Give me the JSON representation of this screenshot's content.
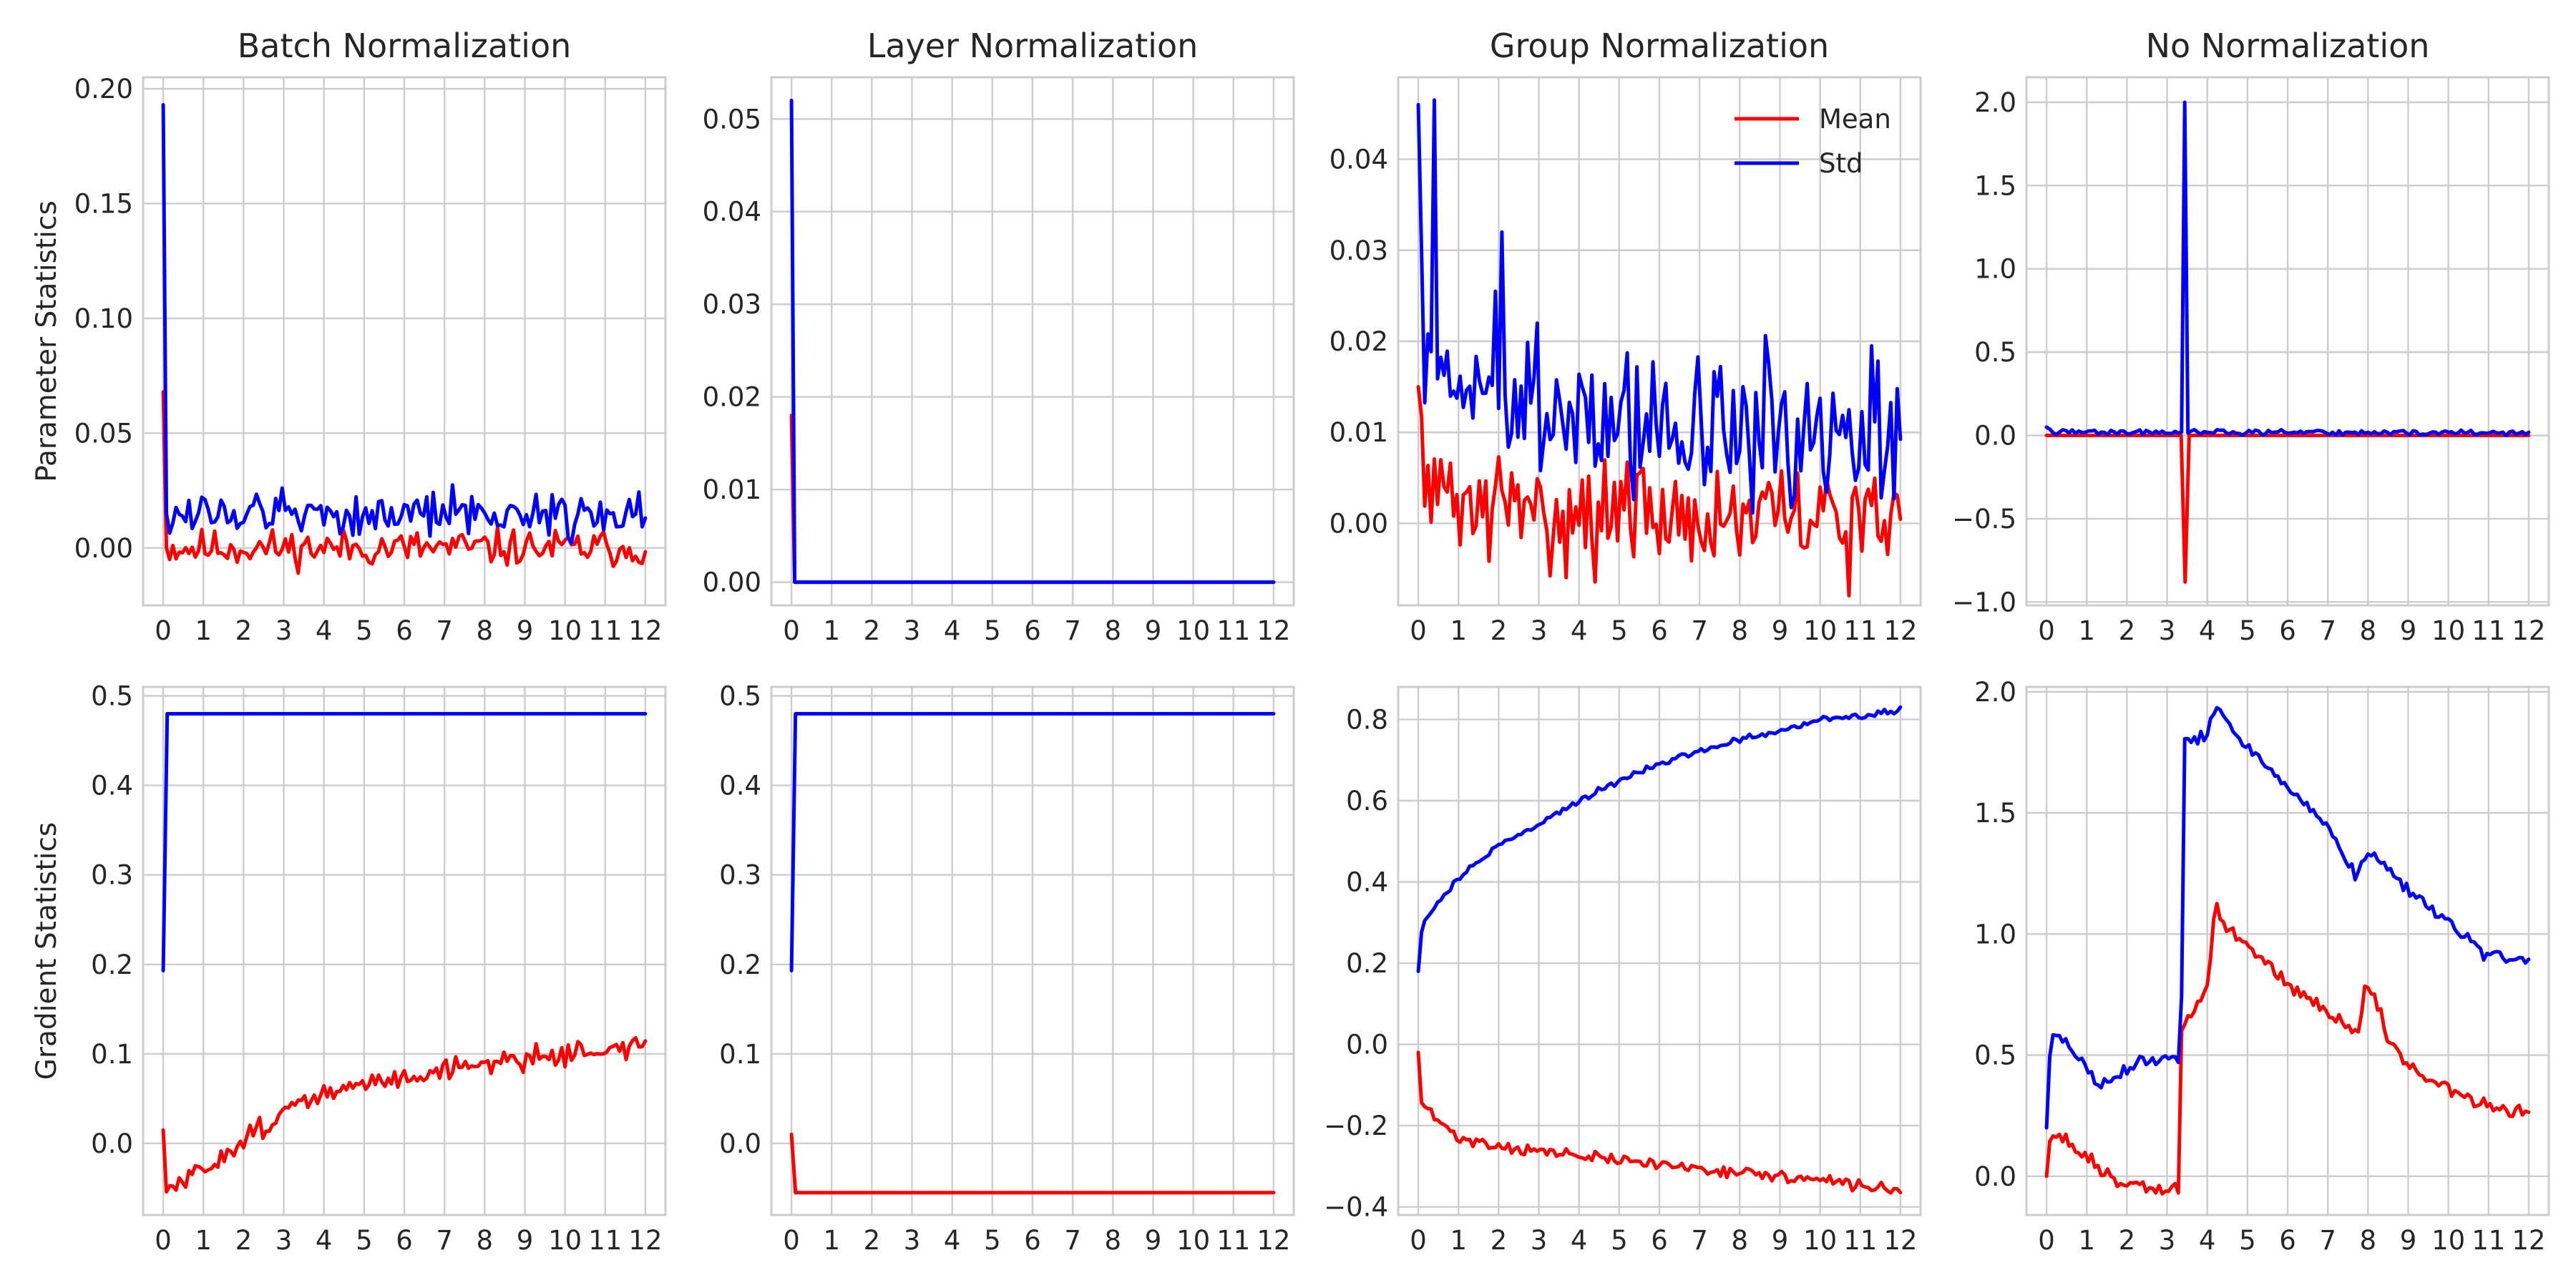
{
  "figure": {
    "background": "#ffffff",
    "grid_color": "#cccccc"
  },
  "chart_data": [
    {
      "type": "line",
      "panel": "top-1",
      "title": "Batch Normalization",
      "ylabel": "Parameter Statistics",
      "xlim": [
        -0.5,
        12.5
      ],
      "xticks": [
        0,
        1,
        2,
        3,
        4,
        5,
        6,
        7,
        8,
        9,
        10,
        11,
        12
      ],
      "ylim": [
        -0.025,
        0.205
      ],
      "yticks": [
        0.0,
        0.05,
        0.1,
        0.15,
        0.2
      ],
      "ytick_labels": [
        "0.00",
        "0.05",
        "0.10",
        "0.15",
        "0.20"
      ],
      "grid": true,
      "series": [
        {
          "name": "Mean",
          "color": "#ff0000",
          "kind": "noisy",
          "seed": 11,
          "x_end": 12,
          "n": 150,
          "points": [
            [
              0,
              0.068
            ],
            [
              0.05,
              0.0
            ],
            [
              12,
              0.0
            ]
          ],
          "noise": 0.004
        },
        {
          "name": "Std",
          "color": "#0000ff",
          "kind": "noisy",
          "seed": 12,
          "x_end": 12,
          "n": 150,
          "points": [
            [
              0,
              0.193
            ],
            [
              0.07,
              0.015
            ],
            [
              12,
              0.015
            ]
          ],
          "noise": 0.005
        }
      ]
    },
    {
      "type": "line",
      "panel": "top-2",
      "title": "Layer Normalization",
      "ylabel": "",
      "xlim": [
        -0.5,
        12.5
      ],
      "xticks": [
        0,
        1,
        2,
        3,
        4,
        5,
        6,
        7,
        8,
        9,
        10,
        11,
        12
      ],
      "ylim": [
        -0.0025,
        0.0545
      ],
      "yticks": [
        0.0,
        0.01,
        0.02,
        0.03,
        0.04,
        0.05
      ],
      "ytick_labels": [
        "0.00",
        "0.01",
        "0.02",
        "0.03",
        "0.04",
        "0.05"
      ],
      "grid": true,
      "series": [
        {
          "name": "Mean",
          "color": "#ff0000",
          "kind": "points",
          "points": [
            [
              0,
              0.018
            ],
            [
              0.08,
              0.0
            ],
            [
              12,
              0.0
            ]
          ]
        },
        {
          "name": "Std",
          "color": "#0000ff",
          "kind": "points",
          "points": [
            [
              0,
              0.052
            ],
            [
              0.08,
              0.0
            ],
            [
              12,
              0.0
            ]
          ]
        }
      ]
    },
    {
      "type": "line",
      "panel": "top-3",
      "title": "Group Normalization",
      "ylabel": "",
      "xlim": [
        -0.5,
        12.5
      ],
      "xticks": [
        0,
        1,
        2,
        3,
        4,
        5,
        6,
        7,
        8,
        9,
        10,
        11,
        12
      ],
      "ylim": [
        -0.009,
        0.049
      ],
      "yticks": [
        0.0,
        0.01,
        0.02,
        0.03,
        0.04
      ],
      "ytick_labels": [
        "0.00",
        "0.01",
        "0.02",
        "0.03",
        "0.04"
      ],
      "grid": true,
      "legend": {
        "placement": "top-right",
        "entries": [
          "Mean",
          "Std"
        ]
      },
      "series": [
        {
          "name": "Mean",
          "color": "#ff0000",
          "kind": "noisy",
          "seed": 31,
          "x_end": 12,
          "n": 150,
          "points": [
            [
              0,
              0.015
            ],
            [
              0.3,
              0.003
            ],
            [
              2,
              0.0015
            ],
            [
              12,
              0.0
            ]
          ],
          "noise": 0.003
        },
        {
          "name": "Std",
          "color": "#0000ff",
          "kind": "noisy",
          "seed": 32,
          "x_end": 12,
          "n": 150,
          "points": [
            [
              0,
              0.046
            ],
            [
              0.15,
              0.016
            ],
            [
              2,
              0.014
            ],
            [
              6,
              0.0105
            ],
            [
              12,
              0.0085
            ]
          ],
          "noise": 0.004,
          "spikes": [
            [
              0.4,
              0.0465
            ],
            [
              2.05,
              0.032
            ],
            [
              1.95,
              0.0255
            ],
            [
              3.0,
              0.022
            ],
            [
              11.3,
              0.0195
            ]
          ]
        }
      ]
    },
    {
      "type": "line",
      "panel": "top-4",
      "title": "No Normalization",
      "ylabel": "",
      "xlim": [
        -0.5,
        12.5
      ],
      "xticks": [
        0,
        1,
        2,
        3,
        4,
        5,
        6,
        7,
        8,
        9,
        10,
        11,
        12
      ],
      "ylim": [
        -1.02,
        2.15
      ],
      "yticks": [
        -1.0,
        -0.5,
        0.0,
        0.5,
        1.0,
        1.5,
        2.0
      ],
      "ytick_labels": [
        "−1.0",
        "−0.5",
        "0.0",
        "0.5",
        "1.0",
        "1.5",
        "2.0"
      ],
      "grid": true,
      "series": [
        {
          "name": "Mean",
          "color": "#ff0000",
          "kind": "points",
          "points": [
            [
              0,
              0.0
            ],
            [
              3.35,
              0.0
            ],
            [
              3.45,
              -0.88
            ],
            [
              3.55,
              0.0
            ],
            [
              12,
              0.0
            ]
          ]
        },
        {
          "name": "Std",
          "color": "#0000ff",
          "kind": "noisy",
          "seed": 42,
          "x_end": 12,
          "n": 150,
          "points": [
            [
              0,
              0.05
            ],
            [
              0.2,
              0.02
            ],
            [
              12,
              0.015
            ]
          ],
          "noise": 0.008,
          "spikes": [
            [
              3.45,
              2.0
            ]
          ]
        }
      ]
    },
    {
      "type": "line",
      "panel": "bottom-1",
      "title": "",
      "ylabel": "Gradient Statistics",
      "xlim": [
        -0.5,
        12.5
      ],
      "xticks": [
        0,
        1,
        2,
        3,
        4,
        5,
        6,
        7,
        8,
        9,
        10,
        11,
        12
      ],
      "ylim": [
        -0.08,
        0.51
      ],
      "yticks": [
        0.0,
        0.1,
        0.2,
        0.3,
        0.4,
        0.5
      ],
      "ytick_labels": [
        "0.0",
        "0.1",
        "0.2",
        "0.3",
        "0.4",
        "0.5"
      ],
      "grid": true,
      "series": [
        {
          "name": "Mean",
          "color": "#ff0000",
          "kind": "noisy",
          "seed": 51,
          "x_end": 12,
          "n": 150,
          "points": [
            [
              0,
              0.015
            ],
            [
              0.05,
              -0.055
            ],
            [
              1,
              -0.03
            ],
            [
              2,
              0.005
            ],
            [
              3,
              0.035
            ],
            [
              4,
              0.055
            ],
            [
              6,
              0.075
            ],
            [
              8,
              0.09
            ],
            [
              10,
              0.1
            ],
            [
              12,
              0.11
            ]
          ],
          "noise": 0.006
        },
        {
          "name": "Std",
          "color": "#0000ff",
          "kind": "points",
          "points": [
            [
              0,
              0.193
            ],
            [
              0.1,
              0.48
            ],
            [
              12,
              0.48
            ]
          ]
        }
      ]
    },
    {
      "type": "line",
      "panel": "bottom-2",
      "title": "",
      "ylabel": "",
      "xlim": [
        -0.5,
        12.5
      ],
      "xticks": [
        0,
        1,
        2,
        3,
        4,
        5,
        6,
        7,
        8,
        9,
        10,
        11,
        12
      ],
      "ylim": [
        -0.08,
        0.51
      ],
      "yticks": [
        0.0,
        0.1,
        0.2,
        0.3,
        0.4,
        0.5
      ],
      "ytick_labels": [
        "0.0",
        "0.1",
        "0.2",
        "0.3",
        "0.4",
        "0.5"
      ],
      "grid": true,
      "series": [
        {
          "name": "Mean",
          "color": "#ff0000",
          "kind": "points",
          "points": [
            [
              0,
              0.01
            ],
            [
              0.1,
              -0.055
            ],
            [
              12,
              -0.055
            ]
          ]
        },
        {
          "name": "Std",
          "color": "#0000ff",
          "kind": "points",
          "points": [
            [
              0,
              0.193
            ],
            [
              0.1,
              0.48
            ],
            [
              12,
              0.48
            ]
          ]
        }
      ]
    },
    {
      "type": "line",
      "panel": "bottom-3",
      "title": "",
      "ylabel": "",
      "xlim": [
        -0.5,
        12.5
      ],
      "xticks": [
        0,
        1,
        2,
        3,
        4,
        5,
        6,
        7,
        8,
        9,
        10,
        11,
        12
      ],
      "ylim": [
        -0.42,
        0.88
      ],
      "yticks": [
        -0.4,
        -0.2,
        0.0,
        0.2,
        0.4,
        0.6,
        0.8
      ],
      "ytick_labels": [
        "−0.4",
        "−0.2",
        "0.0",
        "0.2",
        "0.4",
        "0.6",
        "0.8"
      ],
      "grid": true,
      "series": [
        {
          "name": "Mean",
          "color": "#ff0000",
          "kind": "noisy",
          "seed": 71,
          "x_end": 12,
          "n": 150,
          "points": [
            [
              0,
              -0.02
            ],
            [
              0.05,
              -0.14
            ],
            [
              0.5,
              -0.19
            ],
            [
              1,
              -0.23
            ],
            [
              2,
              -0.25
            ],
            [
              4,
              -0.275
            ],
            [
              6,
              -0.295
            ],
            [
              8,
              -0.315
            ],
            [
              10,
              -0.335
            ],
            [
              12,
              -0.36
            ]
          ],
          "noise": 0.007
        },
        {
          "name": "Std",
          "color": "#0000ff",
          "kind": "noisy",
          "seed": 72,
          "x_end": 12,
          "n": 150,
          "points": [
            [
              0,
              0.18
            ],
            [
              0.1,
              0.3
            ],
            [
              0.5,
              0.35
            ],
            [
              1,
              0.41
            ],
            [
              2,
              0.49
            ],
            [
              3,
              0.54
            ],
            [
              4,
              0.6
            ],
            [
              5,
              0.65
            ],
            [
              6,
              0.69
            ],
            [
              7,
              0.72
            ],
            [
              8,
              0.75
            ],
            [
              9,
              0.77
            ],
            [
              10,
              0.8
            ],
            [
              11,
              0.81
            ],
            [
              12,
              0.825
            ]
          ],
          "noise": 0.004
        }
      ]
    },
    {
      "type": "line",
      "panel": "bottom-4",
      "title": "",
      "ylabel": "",
      "xlim": [
        -0.5,
        12.5
      ],
      "xticks": [
        0,
        1,
        2,
        3,
        4,
        5,
        6,
        7,
        8,
        9,
        10,
        11,
        12
      ],
      "ylim": [
        -0.16,
        2.02
      ],
      "yticks": [
        0.0,
        0.5,
        1.0,
        1.5,
        2.0
      ],
      "ytick_labels": [
        "0.0",
        "0.5",
        "1.0",
        "1.5",
        "2.0"
      ],
      "grid": true,
      "series": [
        {
          "name": "Mean",
          "color": "#ff0000",
          "kind": "noisy",
          "seed": 81,
          "x_end": 12,
          "n": 150,
          "points": [
            [
              0,
              0.0
            ],
            [
              0.1,
              0.18
            ],
            [
              0.5,
              0.15
            ],
            [
              1,
              0.08
            ],
            [
              1.5,
              0.0
            ],
            [
              2,
              -0.04
            ],
            [
              3.3,
              -0.06
            ],
            [
              3.35,
              0.6
            ],
            [
              3.7,
              0.7
            ],
            [
              4.0,
              0.78
            ],
            [
              4.2,
              1.13
            ],
            [
              4.4,
              1.03
            ],
            [
              5,
              0.95
            ],
            [
              6,
              0.8
            ],
            [
              7,
              0.68
            ],
            [
              7.8,
              0.58
            ],
            [
              7.9,
              0.8
            ],
            [
              8.2,
              0.72
            ],
            [
              8.5,
              0.56
            ],
            [
              9,
              0.46
            ],
            [
              10,
              0.36
            ],
            [
              11,
              0.28
            ],
            [
              12,
              0.27
            ]
          ],
          "noise": 0.015
        },
        {
          "name": "Std",
          "color": "#0000ff",
          "kind": "noisy",
          "seed": 82,
          "x_end": 12,
          "n": 150,
          "points": [
            [
              0,
              0.2
            ],
            [
              0.1,
              0.57
            ],
            [
              0.3,
              0.58
            ],
            [
              1,
              0.45
            ],
            [
              1.3,
              0.37
            ],
            [
              2,
              0.45
            ],
            [
              3,
              0.5
            ],
            [
              3.35,
              0.48
            ],
            [
              3.4,
              1.8
            ],
            [
              4,
              1.82
            ],
            [
              4.2,
              1.93
            ],
            [
              4.6,
              1.86
            ],
            [
              5,
              1.77
            ],
            [
              6,
              1.6
            ],
            [
              7,
              1.45
            ],
            [
              7.7,
              1.24
            ],
            [
              7.9,
              1.32
            ],
            [
              8.4,
              1.3
            ],
            [
              9,
              1.18
            ],
            [
              10,
              1.05
            ],
            [
              11,
              0.9
            ],
            [
              12,
              0.9
            ]
          ],
          "noise": 0.012
        }
      ]
    }
  ]
}
